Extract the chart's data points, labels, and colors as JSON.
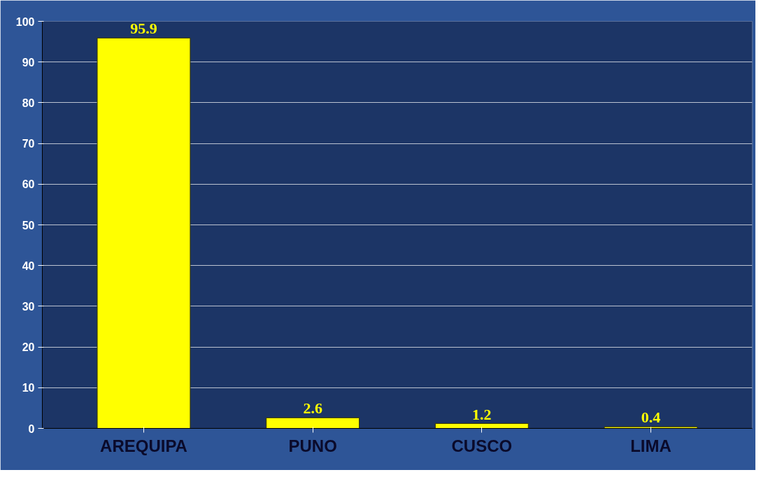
{
  "chart_data": {
    "type": "bar",
    "categories": [
      "AREQUIPA",
      "PUNO",
      "CUSCO",
      "LIMA"
    ],
    "values": [
      95.9,
      2.6,
      1.2,
      0.4
    ],
    "color": "#ffff00",
    "ylim": [
      0,
      100
    ],
    "yticks": [
      0,
      10,
      20,
      30,
      40,
      50,
      60,
      70,
      80,
      90,
      100
    ],
    "grid": "y",
    "data_labels": true
  }
}
